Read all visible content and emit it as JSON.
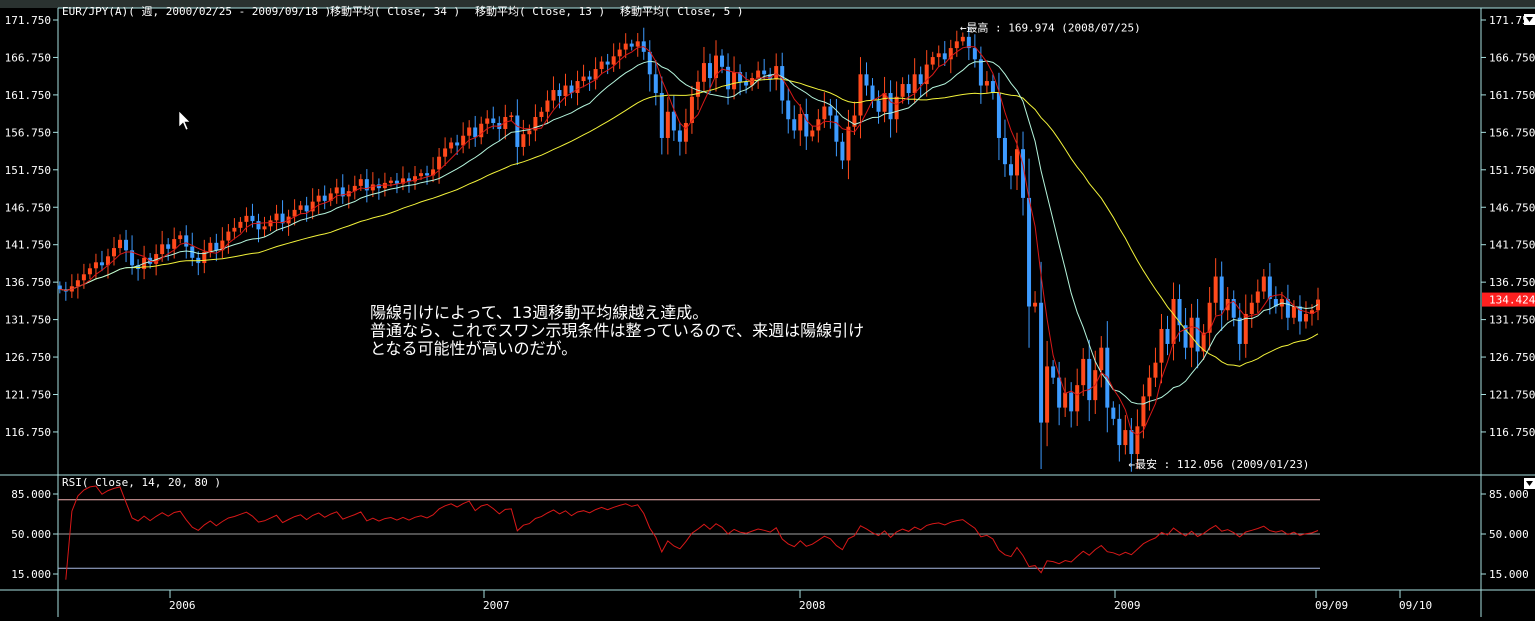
{
  "header": {
    "symbol_label": "EUR/JPY(A)( 週, 2000/02/25 - 2009/09/18 )",
    "indicators": [
      "移動平均( Close, 34 )",
      "移動平均( Close, 13 )",
      "移動平均( Close, 5 )"
    ]
  },
  "rsi_header": "RSI( Close, 14, 20, 80 )",
  "annotation_note": [
    "陽線引けによって、13週移動平均線越え達成。",
    "普通なら、これでスワン示現条件は整っているので、来週は陽線引け",
    "となる可能性が高いのだが。"
  ],
  "colors": {
    "background": "#000000",
    "up_candle": "#ff4a1c",
    "down_candle": "#3d9bff",
    "ma34": "#f2f23a",
    "ma13": "#b4f4dc",
    "ma5": "#d81818",
    "rsi": "#d81818",
    "axis": "#a8e0e0",
    "rsi_upper": "#f0b0b0",
    "rsi_mid": "#a0a0a0",
    "rsi_lower": "#a8b8e0",
    "last_price_bg": "#ff2020"
  },
  "chart_data": [
    {
      "type": "candlestick",
      "title": "EUR/JPY(A)( 週, 2000/02/25 - 2009/09/18 )",
      "period": "weekly",
      "last_date": "2009/09/18",
      "ylim": [
        112.0,
        173.0
      ],
      "y_ticks": [
        "171.750",
        "166.750",
        "161.750",
        "156.750",
        "151.750",
        "146.750",
        "141.750",
        "136.750",
        "131.750",
        "126.750",
        "121.750",
        "116.750"
      ],
      "x_ticks": [
        "2006",
        "2007",
        "2008",
        "2009",
        "09/09",
        "09/10"
      ],
      "closes": [
        135.8,
        135.5,
        136.2,
        137.0,
        137.8,
        138.6,
        139.4,
        139.0,
        140.2,
        141.3,
        142.4,
        141.0,
        139.0,
        138.5,
        140.0,
        139.2,
        140.5,
        141.8,
        141.2,
        142.5,
        143.0,
        141.5,
        140.0,
        139.3,
        140.8,
        142.0,
        141.0,
        142.3,
        143.5,
        144.0,
        144.8,
        145.6,
        144.9,
        143.8,
        144.2,
        145.0,
        145.9,
        144.6,
        145.5,
        146.4,
        147.0,
        146.2,
        147.5,
        148.3,
        147.6,
        148.6,
        149.4,
        148.2,
        148.9,
        149.6,
        150.5,
        149.0,
        149.8,
        149.3,
        150.0,
        150.3,
        149.9,
        150.6,
        150.2,
        150.9,
        151.3,
        151.0,
        151.8,
        153.5,
        154.6,
        155.4,
        155.0,
        156.3,
        157.4,
        156.1,
        157.9,
        158.6,
        158.0,
        157.2,
        158.8,
        159.0,
        154.8,
        156.5,
        157.0,
        158.8,
        159.5,
        161.0,
        162.4,
        161.6,
        163.0,
        162.0,
        163.6,
        164.2,
        163.8,
        165.2,
        166.2,
        165.8,
        166.9,
        167.8,
        168.6,
        168.2,
        168.9,
        167.5,
        164.5,
        162.0,
        156.0,
        159.5,
        157.0,
        155.5,
        158.0,
        161.5,
        163.5,
        166.0,
        164.0,
        167.0,
        165.5,
        162.5,
        164.8,
        163.5,
        163.0,
        164.0,
        165.0,
        164.5,
        163.8,
        165.6,
        161.0,
        158.5,
        157.0,
        159.2,
        156.2,
        157.0,
        158.5,
        160.2,
        159.0,
        155.5,
        153.0,
        157.5,
        159.0,
        164.5,
        163.0,
        161.0,
        159.5,
        162.0,
        158.5,
        161.5,
        163.2,
        162.0,
        164.5,
        163.2,
        165.8,
        166.8,
        167.3,
        166.5,
        168.0,
        168.9,
        169.5,
        168.0,
        166.5,
        163.0,
        163.6,
        162.0,
        156.0,
        152.5,
        151.0,
        154.5,
        148.0,
        133.5,
        134.0,
        118.0,
        125.5,
        124.0,
        120.0,
        122.0,
        119.5,
        123.0,
        126.5,
        121.0,
        125.0,
        128.0,
        120.0,
        118.5,
        115.0,
        117.0,
        113.8,
        117.5,
        121.5,
        124.0,
        126.0,
        130.5,
        128.5,
        134.5,
        131.0,
        128.0,
        132.0,
        127.5,
        130.0,
        134.0,
        137.5,
        133.0,
        134.5,
        132.0,
        128.5,
        132.5,
        134.0,
        135.5,
        137.5,
        134.5,
        133.5,
        134.5,
        132.0,
        133.5,
        131.5,
        132.5,
        133.0,
        134.424
      ],
      "moving_averages": [
        {
          "name": "移動平均( Close, 34 )",
          "period": 34,
          "color": "#f2f23a"
        },
        {
          "name": "移動平均( Close, 13 )",
          "period": 13,
          "color": "#b4f4dc"
        },
        {
          "name": "移動平均( Close, 5 )",
          "period": 5,
          "color": "#d81818"
        }
      ],
      "annotations": [
        {
          "label": "←最高 : 169.974 (2008/07/25)",
          "price": 169.974,
          "kind": "high"
        },
        {
          "label": "←最安 : 112.056 (2009/01/23)",
          "price": 112.056,
          "kind": "low"
        }
      ],
      "last_price": "134.424"
    },
    {
      "type": "line",
      "title": "RSI( Close, 14, 20, 80 )",
      "period": 14,
      "levels": [
        80,
        50,
        20
      ],
      "ylim": [
        10,
        92
      ],
      "y_ticks": [
        "85.000",
        "50.000",
        "15.000"
      ]
    }
  ]
}
